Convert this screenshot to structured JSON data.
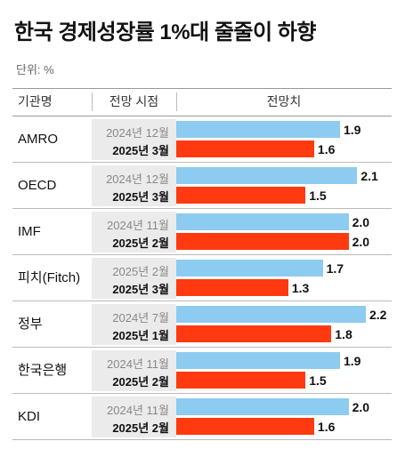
{
  "title": "한국 경제성장률 1%대 줄줄이 하향",
  "unit_label": "단위: %",
  "headers": {
    "institution": "기관명",
    "date": "전망 시점",
    "value": "전망치"
  },
  "colors": {
    "previous": "#8ecbf0",
    "latest": "#ff3a10"
  },
  "chart_data": {
    "type": "bar",
    "orientation": "horizontal",
    "xlim": [
      0,
      2.2
    ],
    "grid": false,
    "rows": [
      {
        "institution": "AMRO",
        "points": [
          {
            "date": "2024년 12월",
            "value": 1.9
          },
          {
            "date": "2025년 3월",
            "value": 1.6
          }
        ]
      },
      {
        "institution": "OECD",
        "points": [
          {
            "date": "2024년 12월",
            "value": 2.1
          },
          {
            "date": "2025년 3월",
            "value": 1.5
          }
        ]
      },
      {
        "institution": "IMF",
        "points": [
          {
            "date": "2024년 11월",
            "value": 2.0
          },
          {
            "date": "2025년 2월",
            "value": 2.0
          }
        ]
      },
      {
        "institution": "피치(Fitch)",
        "points": [
          {
            "date": "2025년 2월",
            "value": 1.7
          },
          {
            "date": "2025년 3월",
            "value": 1.3
          }
        ]
      },
      {
        "institution": "정부",
        "points": [
          {
            "date": "2024년 7월",
            "value": 2.2
          },
          {
            "date": "2025년 1월",
            "value": 1.8
          }
        ]
      },
      {
        "institution": "한국은행",
        "points": [
          {
            "date": "2024년 11월",
            "value": 1.9
          },
          {
            "date": "2025년 2월",
            "value": 1.5
          }
        ]
      },
      {
        "institution": "KDI",
        "points": [
          {
            "date": "2024년 11월",
            "value": 2.0
          },
          {
            "date": "2025년 2월",
            "value": 1.6
          }
        ]
      }
    ]
  }
}
